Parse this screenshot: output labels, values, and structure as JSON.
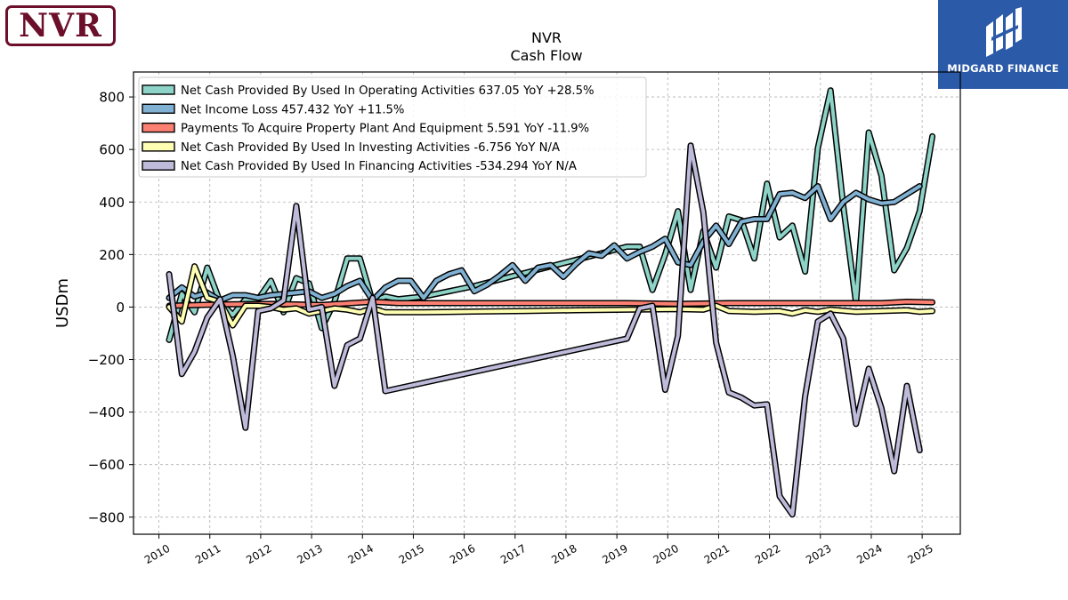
{
  "logos": {
    "left": "NVR",
    "right": "MIDGARD FINANCE"
  },
  "chart_data": {
    "type": "line",
    "title": "NVR",
    "subtitle": "Cash Flow",
    "xlabel": "",
    "ylabel": "USDm",
    "xlim": [
      2009.5,
      2025.75
    ],
    "ylim": [
      -865,
      895
    ],
    "x_ticks": [
      2010,
      2011,
      2012,
      2013,
      2014,
      2015,
      2016,
      2017,
      2018,
      2019,
      2020,
      2021,
      2022,
      2023,
      2024,
      2025
    ],
    "y_ticks": [
      -800,
      -600,
      -400,
      -200,
      0,
      200,
      400,
      600,
      800
    ],
    "grid": true,
    "legend_position": "top-left",
    "series": [
      {
        "name": "Net Cash Provided By Used In Operating Activities  637.05 YoY +28.5%",
        "color": "#8dd3c7",
        "points": [
          [
            2010.2,
            -125
          ],
          [
            2010.45,
            50
          ],
          [
            2010.7,
            -20
          ],
          [
            2010.95,
            150
          ],
          [
            2011.2,
            20
          ],
          [
            2011.45,
            -30
          ],
          [
            2011.7,
            30
          ],
          [
            2011.95,
            30
          ],
          [
            2012.2,
            100
          ],
          [
            2012.45,
            -20
          ],
          [
            2012.7,
            110
          ],
          [
            2012.95,
            90
          ],
          [
            2013.2,
            -80
          ],
          [
            2013.45,
            20
          ],
          [
            2013.7,
            185
          ],
          [
            2013.95,
            185
          ],
          [
            2014.2,
            20
          ],
          [
            2014.45,
            40
          ],
          [
            2014.7,
            30
          ],
          [
            2015.2,
            40
          ],
          [
            2016.2,
            80
          ],
          [
            2017.2,
            130
          ],
          [
            2018.2,
            180
          ],
          [
            2019.2,
            230
          ],
          [
            2019.45,
            230
          ],
          [
            2019.7,
            65
          ],
          [
            2019.95,
            200
          ],
          [
            2020.2,
            365
          ],
          [
            2020.45,
            65
          ],
          [
            2020.7,
            290
          ],
          [
            2020.95,
            150
          ],
          [
            2021.2,
            345
          ],
          [
            2021.45,
            330
          ],
          [
            2021.7,
            185
          ],
          [
            2021.95,
            470
          ],
          [
            2022.2,
            265
          ],
          [
            2022.45,
            310
          ],
          [
            2022.7,
            135
          ],
          [
            2022.95,
            605
          ],
          [
            2023.2,
            825
          ],
          [
            2023.45,
            385
          ],
          [
            2023.7,
            15
          ],
          [
            2023.95,
            665
          ],
          [
            2024.2,
            500
          ],
          [
            2024.45,
            140
          ],
          [
            2024.7,
            225
          ],
          [
            2024.95,
            365
          ],
          [
            2025.2,
            650
          ]
        ]
      },
      {
        "name": "Net Income Loss  457.432 YoY +11.5%",
        "color": "#80b1d3",
        "points": [
          [
            2010.2,
            35
          ],
          [
            2010.45,
            75
          ],
          [
            2010.7,
            40
          ],
          [
            2010.95,
            55
          ],
          [
            2011.2,
            25
          ],
          [
            2011.45,
            45
          ],
          [
            2011.7,
            45
          ],
          [
            2011.95,
            35
          ],
          [
            2012.2,
            45
          ],
          [
            2012.45,
            50
          ],
          [
            2012.7,
            55
          ],
          [
            2012.95,
            60
          ],
          [
            2013.2,
            35
          ],
          [
            2013.45,
            50
          ],
          [
            2013.7,
            80
          ],
          [
            2013.95,
            100
          ],
          [
            2014.2,
            25
          ],
          [
            2014.45,
            75
          ],
          [
            2014.7,
            100
          ],
          [
            2014.95,
            100
          ],
          [
            2015.2,
            35
          ],
          [
            2015.45,
            100
          ],
          [
            2015.7,
            125
          ],
          [
            2015.95,
            140
          ],
          [
            2016.2,
            60
          ],
          [
            2016.45,
            85
          ],
          [
            2016.7,
            120
          ],
          [
            2016.95,
            160
          ],
          [
            2017.2,
            100
          ],
          [
            2017.45,
            150
          ],
          [
            2017.7,
            160
          ],
          [
            2017.95,
            115
          ],
          [
            2018.2,
            165
          ],
          [
            2018.45,
            205
          ],
          [
            2018.7,
            195
          ],
          [
            2018.95,
            235
          ],
          [
            2019.2,
            185
          ],
          [
            2019.45,
            210
          ],
          [
            2019.7,
            230
          ],
          [
            2019.95,
            260
          ],
          [
            2020.2,
            170
          ],
          [
            2020.45,
            160
          ],
          [
            2020.7,
            250
          ],
          [
            2020.95,
            310
          ],
          [
            2021.2,
            240
          ],
          [
            2021.45,
            325
          ],
          [
            2021.7,
            335
          ],
          [
            2021.95,
            335
          ],
          [
            2022.2,
            430
          ],
          [
            2022.45,
            435
          ],
          [
            2022.7,
            415
          ],
          [
            2022.95,
            460
          ],
          [
            2023.2,
            335
          ],
          [
            2023.45,
            400
          ],
          [
            2023.7,
            435
          ],
          [
            2023.95,
            410
          ],
          [
            2024.2,
            395
          ],
          [
            2024.45,
            400
          ],
          [
            2024.7,
            430
          ],
          [
            2024.95,
            460
          ]
        ]
      },
      {
        "name": "Payments To Acquire Property Plant And Equipment  5.591 YoY -11.9%",
        "color": "#fb8072",
        "points": [
          [
            2010.2,
            5
          ],
          [
            2011.2,
            10
          ],
          [
            2012.2,
            12
          ],
          [
            2013.2,
            8
          ],
          [
            2014.2,
            20
          ],
          [
            2014.7,
            15
          ],
          [
            2016.2,
            15
          ],
          [
            2018.2,
            15
          ],
          [
            2019.2,
            15
          ],
          [
            2020.2,
            12
          ],
          [
            2021.2,
            15
          ],
          [
            2022.2,
            15
          ],
          [
            2023.2,
            15
          ],
          [
            2024.2,
            15
          ],
          [
            2024.7,
            20
          ],
          [
            2025.2,
            18
          ]
        ]
      },
      {
        "name": "Net Cash Provided By Used In Investing Activities  -6.756 YoY N/A",
        "color": "#ffffb3",
        "points": [
          [
            2010.2,
            0
          ],
          [
            2010.45,
            -55
          ],
          [
            2010.7,
            155
          ],
          [
            2010.95,
            35
          ],
          [
            2011.2,
            20
          ],
          [
            2011.45,
            -70
          ],
          [
            2011.7,
            5
          ],
          [
            2011.95,
            5
          ],
          [
            2012.2,
            0
          ],
          [
            2012.45,
            -10
          ],
          [
            2012.7,
            -5
          ],
          [
            2012.95,
            -25
          ],
          [
            2013.2,
            -15
          ],
          [
            2013.45,
            -5
          ],
          [
            2013.7,
            -10
          ],
          [
            2013.95,
            -20
          ],
          [
            2014.2,
            -5
          ],
          [
            2014.45,
            -20
          ],
          [
            2015.2,
            -20
          ],
          [
            2016.2,
            -17
          ],
          [
            2017.2,
            -15
          ],
          [
            2018.2,
            -12
          ],
          [
            2019.2,
            -10
          ],
          [
            2020.2,
            -8
          ],
          [
            2020.7,
            -10
          ],
          [
            2020.95,
            5
          ],
          [
            2021.2,
            -15
          ],
          [
            2021.7,
            -18
          ],
          [
            2022.2,
            -15
          ],
          [
            2022.45,
            -25
          ],
          [
            2022.7,
            -12
          ],
          [
            2022.95,
            -18
          ],
          [
            2023.2,
            -10
          ],
          [
            2023.7,
            -18
          ],
          [
            2024.2,
            -15
          ],
          [
            2024.7,
            -12
          ],
          [
            2024.95,
            -18
          ],
          [
            2025.2,
            -15
          ]
        ]
      },
      {
        "name": "Net Cash Provided By Used In Financing Activities  -534.294 YoY N/A",
        "color": "#bebada",
        "points": [
          [
            2010.2,
            125
          ],
          [
            2010.45,
            -255
          ],
          [
            2010.7,
            -170
          ],
          [
            2010.95,
            -40
          ],
          [
            2011.2,
            30
          ],
          [
            2011.45,
            -185
          ],
          [
            2011.7,
            -460
          ],
          [
            2011.95,
            -15
          ],
          [
            2012.2,
            -5
          ],
          [
            2012.45,
            25
          ],
          [
            2012.7,
            385
          ],
          [
            2012.95,
            -10
          ],
          [
            2013.2,
            0
          ],
          [
            2013.45,
            -300
          ],
          [
            2013.7,
            -145
          ],
          [
            2013.95,
            -120
          ],
          [
            2014.2,
            35
          ],
          [
            2014.45,
            -320
          ],
          [
            2019.2,
            -120
          ],
          [
            2019.45,
            -5
          ],
          [
            2019.7,
            5
          ],
          [
            2019.95,
            -315
          ],
          [
            2020.2,
            -110
          ],
          [
            2020.45,
            615
          ],
          [
            2020.7,
            360
          ],
          [
            2020.95,
            -135
          ],
          [
            2021.2,
            -325
          ],
          [
            2021.45,
            -345
          ],
          [
            2021.7,
            -375
          ],
          [
            2021.95,
            -370
          ],
          [
            2022.2,
            -720
          ],
          [
            2022.45,
            -790
          ],
          [
            2022.7,
            -340
          ],
          [
            2022.95,
            -55
          ],
          [
            2023.2,
            -25
          ],
          [
            2023.45,
            -120
          ],
          [
            2023.7,
            -445
          ],
          [
            2023.95,
            -235
          ],
          [
            2024.2,
            -385
          ],
          [
            2024.45,
            -625
          ],
          [
            2024.7,
            -300
          ],
          [
            2024.95,
            -545
          ]
        ]
      }
    ]
  }
}
